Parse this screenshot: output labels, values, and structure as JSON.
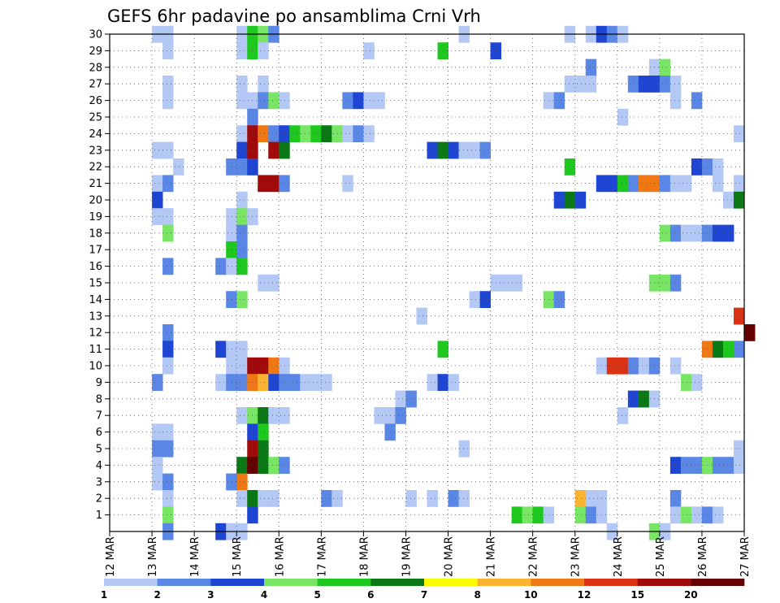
{
  "chart_data": {
    "type": "heatmap",
    "title": "GEFS 6hr padavine po ansamblima Crni Vrh",
    "xlabel": "",
    "ylabel": "",
    "x_ticks": [
      "12 MAR",
      "13 MAR",
      "14 MAR",
      "15 MAR",
      "16 MAR",
      "17 MAR",
      "18 MAR",
      "19 MAR",
      "20 MAR",
      "21 MAR",
      "22 MAR",
      "23 MAR",
      "24 MAR",
      "25 MAR",
      "26 MAR",
      "27 MAR"
    ],
    "xlim": [
      0,
      15
    ],
    "ylim": [
      0,
      30
    ],
    "y_ticks": [
      1,
      2,
      3,
      4,
      5,
      6,
      7,
      8,
      9,
      10,
      11,
      12,
      13,
      14,
      15,
      16,
      17,
      18,
      19,
      20,
      21,
      22,
      23,
      24,
      25,
      26,
      27,
      28,
      29,
      30
    ],
    "grid": true,
    "legend_position": "bottom",
    "legend": {
      "labels": [
        "1",
        "2",
        "3",
        "4",
        "5",
        "6",
        "7",
        "8",
        "10",
        "12",
        "15",
        "20"
      ],
      "colors": [
        "#b4c8f5",
        "#5a87e6",
        "#1e46d2",
        "#78e664",
        "#1ec81e",
        "#0a7814",
        "#fafa00",
        "#fab432",
        "#f07814",
        "#dc3214",
        "#a00a0a",
        "#640000"
      ]
    },
    "cell_unit_days": 0.25,
    "cells": [
      {
        "x": 1.0,
        "m": 30,
        "v": 1
      },
      {
        "x": 1.25,
        "m": 30,
        "v": 1
      },
      {
        "x": 3.0,
        "m": 30,
        "v": 1
      },
      {
        "x": 3.25,
        "m": 30,
        "v": 5
      },
      {
        "x": 3.5,
        "m": 30,
        "v": 4
      },
      {
        "x": 3.75,
        "m": 30,
        "v": 2
      },
      {
        "x": 8.25,
        "m": 30,
        "v": 1
      },
      {
        "x": 10.75,
        "m": 30,
        "v": 1
      },
      {
        "x": 11.25,
        "m": 30,
        "v": 1
      },
      {
        "x": 11.5,
        "m": 30,
        "v": 3
      },
      {
        "x": 11.75,
        "m": 30,
        "v": 2
      },
      {
        "x": 12.0,
        "m": 30,
        "v": 1
      },
      {
        "x": 1.25,
        "m": 29,
        "v": 1
      },
      {
        "x": 3.0,
        "m": 29,
        "v": 1
      },
      {
        "x": 3.25,
        "m": 29,
        "v": 5
      },
      {
        "x": 3.5,
        "m": 29,
        "v": 1
      },
      {
        "x": 6.0,
        "m": 29,
        "v": 1
      },
      {
        "x": 7.75,
        "m": 29,
        "v": 5
      },
      {
        "x": 9.0,
        "m": 29,
        "v": 3
      },
      {
        "x": 11.25,
        "m": 28,
        "v": 2
      },
      {
        "x": 12.75,
        "m": 28,
        "v": 1
      },
      {
        "x": 13.0,
        "m": 28,
        "v": 4
      },
      {
        "x": 1.25,
        "m": 27,
        "v": 1
      },
      {
        "x": 3.0,
        "m": 27,
        "v": 1
      },
      {
        "x": 3.5,
        "m": 27,
        "v": 1
      },
      {
        "x": 10.75,
        "m": 27,
        "v": 1
      },
      {
        "x": 11.0,
        "m": 27,
        "v": 1
      },
      {
        "x": 11.25,
        "m": 27,
        "v": 1
      },
      {
        "x": 12.25,
        "m": 27,
        "v": 2
      },
      {
        "x": 12.5,
        "m": 27,
        "v": 3
      },
      {
        "x": 12.75,
        "m": 27,
        "v": 3
      },
      {
        "x": 13.0,
        "m": 27,
        "v": 2
      },
      {
        "x": 13.25,
        "m": 27,
        "v": 1
      },
      {
        "x": 1.25,
        "m": 26,
        "v": 1
      },
      {
        "x": 3.0,
        "m": 26,
        "v": 1
      },
      {
        "x": 3.25,
        "m": 26,
        "v": 1
      },
      {
        "x": 3.5,
        "m": 26,
        "v": 2
      },
      {
        "x": 3.75,
        "m": 26,
        "v": 4
      },
      {
        "x": 4.0,
        "m": 26,
        "v": 1
      },
      {
        "x": 5.5,
        "m": 26,
        "v": 2
      },
      {
        "x": 5.75,
        "m": 26,
        "v": 3
      },
      {
        "x": 6.0,
        "m": 26,
        "v": 1
      },
      {
        "x": 6.25,
        "m": 26,
        "v": 1
      },
      {
        "x": 10.25,
        "m": 26,
        "v": 1
      },
      {
        "x": 10.5,
        "m": 26,
        "v": 2
      },
      {
        "x": 13.25,
        "m": 26,
        "v": 1
      },
      {
        "x": 13.75,
        "m": 26,
        "v": 2
      },
      {
        "x": 3.25,
        "m": 25,
        "v": 2
      },
      {
        "x": 12.0,
        "m": 25,
        "v": 1
      },
      {
        "x": 3.0,
        "m": 24,
        "v": 1
      },
      {
        "x": 3.25,
        "m": 24,
        "v": 15
      },
      {
        "x": 3.5,
        "m": 24,
        "v": 10
      },
      {
        "x": 3.75,
        "m": 24,
        "v": 2
      },
      {
        "x": 4.0,
        "m": 24,
        "v": 3
      },
      {
        "x": 4.25,
        "m": 24,
        "v": 5
      },
      {
        "x": 4.5,
        "m": 24,
        "v": 4
      },
      {
        "x": 4.75,
        "m": 24,
        "v": 5
      },
      {
        "x": 5.0,
        "m": 24,
        "v": 6
      },
      {
        "x": 5.25,
        "m": 24,
        "v": 4
      },
      {
        "x": 5.5,
        "m": 24,
        "v": 1
      },
      {
        "x": 5.75,
        "m": 24,
        "v": 2
      },
      {
        "x": 6.0,
        "m": 24,
        "v": 1
      },
      {
        "x": 14.75,
        "m": 24,
        "v": 1
      },
      {
        "x": 1.0,
        "m": 23,
        "v": 1
      },
      {
        "x": 1.25,
        "m": 23,
        "v": 1
      },
      {
        "x": 3.0,
        "m": 23,
        "v": 3
      },
      {
        "x": 3.25,
        "m": 23,
        "v": 15
      },
      {
        "x": 3.75,
        "m": 23,
        "v": 15
      },
      {
        "x": 4.0,
        "m": 23,
        "v": 6
      },
      {
        "x": 7.5,
        "m": 23,
        "v": 3
      },
      {
        "x": 7.75,
        "m": 23,
        "v": 6
      },
      {
        "x": 8.0,
        "m": 23,
        "v": 3
      },
      {
        "x": 8.25,
        "m": 23,
        "v": 1
      },
      {
        "x": 8.5,
        "m": 23,
        "v": 1
      },
      {
        "x": 8.75,
        "m": 23,
        "v": 2
      },
      {
        "x": 1.5,
        "m": 22,
        "v": 1
      },
      {
        "x": 2.75,
        "m": 22,
        "v": 2
      },
      {
        "x": 3.0,
        "m": 22,
        "v": 2
      },
      {
        "x": 3.25,
        "m": 22,
        "v": 3
      },
      {
        "x": 10.75,
        "m": 22,
        "v": 5
      },
      {
        "x": 13.75,
        "m": 22,
        "v": 3
      },
      {
        "x": 14.0,
        "m": 22,
        "v": 2
      },
      {
        "x": 14.25,
        "m": 22,
        "v": 1
      },
      {
        "x": 1.0,
        "m": 21,
        "v": 1
      },
      {
        "x": 1.25,
        "m": 21,
        "v": 2
      },
      {
        "x": 3.5,
        "m": 21,
        "v": 15
      },
      {
        "x": 3.75,
        "m": 21,
        "v": 15
      },
      {
        "x": 4.0,
        "m": 21,
        "v": 2
      },
      {
        "x": 5.5,
        "m": 21,
        "v": 1
      },
      {
        "x": 11.5,
        "m": 21,
        "v": 3
      },
      {
        "x": 11.75,
        "m": 21,
        "v": 3
      },
      {
        "x": 12.0,
        "m": 21,
        "v": 5
      },
      {
        "x": 12.25,
        "m": 21,
        "v": 2
      },
      {
        "x": 12.5,
        "m": 21,
        "v": 10
      },
      {
        "x": 12.75,
        "m": 21,
        "v": 10
      },
      {
        "x": 13.0,
        "m": 21,
        "v": 2
      },
      {
        "x": 13.25,
        "m": 21,
        "v": 1
      },
      {
        "x": 13.5,
        "m": 21,
        "v": 1
      },
      {
        "x": 14.25,
        "m": 21,
        "v": 1
      },
      {
        "x": 14.75,
        "m": 21,
        "v": 1
      },
      {
        "x": 1.0,
        "m": 20,
        "v": 3
      },
      {
        "x": 3.0,
        "m": 20,
        "v": 1
      },
      {
        "x": 10.5,
        "m": 20,
        "v": 3
      },
      {
        "x": 10.75,
        "m": 20,
        "v": 6
      },
      {
        "x": 11.0,
        "m": 20,
        "v": 3
      },
      {
        "x": 14.5,
        "m": 20,
        "v": 1
      },
      {
        "x": 14.75,
        "m": 20,
        "v": 6
      },
      {
        "x": 1.0,
        "m": 19,
        "v": 1
      },
      {
        "x": 1.25,
        "m": 19,
        "v": 1
      },
      {
        "x": 2.75,
        "m": 19,
        "v": 1
      },
      {
        "x": 3.0,
        "m": 19,
        "v": 4
      },
      {
        "x": 3.25,
        "m": 19,
        "v": 1
      },
      {
        "x": 1.25,
        "m": 18,
        "v": 4
      },
      {
        "x": 2.75,
        "m": 18,
        "v": 1
      },
      {
        "x": 3.0,
        "m": 18,
        "v": 2
      },
      {
        "x": 13.0,
        "m": 18,
        "v": 4
      },
      {
        "x": 13.25,
        "m": 18,
        "v": 2
      },
      {
        "x": 13.5,
        "m": 18,
        "v": 1
      },
      {
        "x": 13.75,
        "m": 18,
        "v": 1
      },
      {
        "x": 14.0,
        "m": 18,
        "v": 2
      },
      {
        "x": 14.25,
        "m": 18,
        "v": 3
      },
      {
        "x": 14.5,
        "m": 18,
        "v": 3
      },
      {
        "x": 2.75,
        "m": 17,
        "v": 5
      },
      {
        "x": 3.0,
        "m": 17,
        "v": 2
      },
      {
        "x": 1.25,
        "m": 16,
        "v": 2
      },
      {
        "x": 2.5,
        "m": 16,
        "v": 2
      },
      {
        "x": 2.75,
        "m": 16,
        "v": 1
      },
      {
        "x": 3.0,
        "m": 16,
        "v": 5
      },
      {
        "x": 3.5,
        "m": 15,
        "v": 1
      },
      {
        "x": 3.75,
        "m": 15,
        "v": 1
      },
      {
        "x": 9.0,
        "m": 15,
        "v": 1
      },
      {
        "x": 9.25,
        "m": 15,
        "v": 1
      },
      {
        "x": 9.5,
        "m": 15,
        "v": 1
      },
      {
        "x": 12.75,
        "m": 15,
        "v": 4
      },
      {
        "x": 13.0,
        "m": 15,
        "v": 4
      },
      {
        "x": 13.25,
        "m": 15,
        "v": 2
      },
      {
        "x": 2.75,
        "m": 14,
        "v": 2
      },
      {
        "x": 3.0,
        "m": 14,
        "v": 4
      },
      {
        "x": 8.5,
        "m": 14,
        "v": 1
      },
      {
        "x": 8.75,
        "m": 14,
        "v": 3
      },
      {
        "x": 10.25,
        "m": 14,
        "v": 4
      },
      {
        "x": 10.5,
        "m": 14,
        "v": 2
      },
      {
        "x": 7.25,
        "m": 13,
        "v": 1
      },
      {
        "x": 14.75,
        "m": 13,
        "v": 12
      },
      {
        "x": 1.25,
        "m": 12,
        "v": 2
      },
      {
        "x": 15.0,
        "m": 12,
        "v": 20
      },
      {
        "x": 1.25,
        "m": 11,
        "v": 3
      },
      {
        "x": 2.5,
        "m": 11,
        "v": 3
      },
      {
        "x": 2.75,
        "m": 11,
        "v": 1
      },
      {
        "x": 3.0,
        "m": 11,
        "v": 1
      },
      {
        "x": 7.75,
        "m": 11,
        "v": 5
      },
      {
        "x": 14.0,
        "m": 11,
        "v": 10
      },
      {
        "x": 14.25,
        "m": 11,
        "v": 6
      },
      {
        "x": 14.5,
        "m": 11,
        "v": 5
      },
      {
        "x": 14.75,
        "m": 11,
        "v": 2
      },
      {
        "x": 1.25,
        "m": 10,
        "v": 1
      },
      {
        "x": 2.75,
        "m": 10,
        "v": 1
      },
      {
        "x": 3.0,
        "m": 10,
        "v": 1
      },
      {
        "x": 3.25,
        "m": 10,
        "v": 15
      },
      {
        "x": 3.5,
        "m": 10,
        "v": 15
      },
      {
        "x": 3.75,
        "m": 10,
        "v": 10
      },
      {
        "x": 4.0,
        "m": 10,
        "v": 1
      },
      {
        "x": 11.5,
        "m": 10,
        "v": 1
      },
      {
        "x": 11.75,
        "m": 10,
        "v": 12
      },
      {
        "x": 12.0,
        "m": 10,
        "v": 12
      },
      {
        "x": 12.25,
        "m": 10,
        "v": 2
      },
      {
        "x": 12.5,
        "m": 10,
        "v": 1
      },
      {
        "x": 12.75,
        "m": 10,
        "v": 2
      },
      {
        "x": 13.25,
        "m": 10,
        "v": 1
      },
      {
        "x": 1.0,
        "m": 9,
        "v": 2
      },
      {
        "x": 2.5,
        "m": 9,
        "v": 1
      },
      {
        "x": 2.75,
        "m": 9,
        "v": 2
      },
      {
        "x": 3.0,
        "m": 9,
        "v": 2
      },
      {
        "x": 3.25,
        "m": 9,
        "v": 10
      },
      {
        "x": 3.5,
        "m": 9,
        "v": 8
      },
      {
        "x": 3.75,
        "m": 9,
        "v": 3
      },
      {
        "x": 4.0,
        "m": 9,
        "v": 2
      },
      {
        "x": 4.25,
        "m": 9,
        "v": 2
      },
      {
        "x": 4.5,
        "m": 9,
        "v": 1
      },
      {
        "x": 4.75,
        "m": 9,
        "v": 1
      },
      {
        "x": 5.0,
        "m": 9,
        "v": 1
      },
      {
        "x": 7.5,
        "m": 9,
        "v": 1
      },
      {
        "x": 7.75,
        "m": 9,
        "v": 3
      },
      {
        "x": 8.0,
        "m": 9,
        "v": 1
      },
      {
        "x": 13.5,
        "m": 9,
        "v": 4
      },
      {
        "x": 13.75,
        "m": 9,
        "v": 1
      },
      {
        "x": 6.75,
        "m": 8,
        "v": 1
      },
      {
        "x": 7.0,
        "m": 8,
        "v": 2
      },
      {
        "x": 12.25,
        "m": 8,
        "v": 3
      },
      {
        "x": 12.5,
        "m": 8,
        "v": 6
      },
      {
        "x": 12.75,
        "m": 8,
        "v": 1
      },
      {
        "x": 3.0,
        "m": 7,
        "v": 1
      },
      {
        "x": 3.25,
        "m": 7,
        "v": 4
      },
      {
        "x": 3.5,
        "m": 7,
        "v": 6
      },
      {
        "x": 3.75,
        "m": 7,
        "v": 1
      },
      {
        "x": 4.0,
        "m": 7,
        "v": 1
      },
      {
        "x": 6.25,
        "m": 7,
        "v": 1
      },
      {
        "x": 6.5,
        "m": 7,
        "v": 1
      },
      {
        "x": 6.75,
        "m": 7,
        "v": 2
      },
      {
        "x": 12.0,
        "m": 7,
        "v": 1
      },
      {
        "x": 1.0,
        "m": 6,
        "v": 1
      },
      {
        "x": 1.25,
        "m": 6,
        "v": 1
      },
      {
        "x": 3.25,
        "m": 6,
        "v": 3
      },
      {
        "x": 3.5,
        "m": 6,
        "v": 5
      },
      {
        "x": 6.5,
        "m": 6,
        "v": 2
      },
      {
        "x": 1.0,
        "m": 5,
        "v": 2
      },
      {
        "x": 1.25,
        "m": 5,
        "v": 2
      },
      {
        "x": 3.25,
        "m": 5,
        "v": 15
      },
      {
        "x": 3.5,
        "m": 5,
        "v": 6
      },
      {
        "x": 8.25,
        "m": 5,
        "v": 1
      },
      {
        "x": 14.75,
        "m": 5,
        "v": 1
      },
      {
        "x": 1.0,
        "m": 4,
        "v": 1
      },
      {
        "x": 3.0,
        "m": 4,
        "v": 6
      },
      {
        "x": 3.25,
        "m": 4,
        "v": 20
      },
      {
        "x": 3.5,
        "m": 4,
        "v": 6
      },
      {
        "x": 3.75,
        "m": 4,
        "v": 4
      },
      {
        "x": 4.0,
        "m": 4,
        "v": 2
      },
      {
        "x": 13.25,
        "m": 4,
        "v": 3
      },
      {
        "x": 13.5,
        "m": 4,
        "v": 2
      },
      {
        "x": 13.75,
        "m": 4,
        "v": 2
      },
      {
        "x": 14.0,
        "m": 4,
        "v": 4
      },
      {
        "x": 14.25,
        "m": 4,
        "v": 2
      },
      {
        "x": 14.5,
        "m": 4,
        "v": 2
      },
      {
        "x": 14.75,
        "m": 4,
        "v": 1
      },
      {
        "x": 1.0,
        "m": 3,
        "v": 1
      },
      {
        "x": 1.25,
        "m": 3,
        "v": 2
      },
      {
        "x": 2.75,
        "m": 3,
        "v": 2
      },
      {
        "x": 3.0,
        "m": 3,
        "v": 10
      },
      {
        "x": 1.25,
        "m": 2,
        "v": 1
      },
      {
        "x": 3.0,
        "m": 2,
        "v": 1
      },
      {
        "x": 3.25,
        "m": 2,
        "v": 6
      },
      {
        "x": 3.5,
        "m": 2,
        "v": 1
      },
      {
        "x": 3.75,
        "m": 2,
        "v": 1
      },
      {
        "x": 5.0,
        "m": 2,
        "v": 2
      },
      {
        "x": 5.25,
        "m": 2,
        "v": 1
      },
      {
        "x": 7.0,
        "m": 2,
        "v": 1
      },
      {
        "x": 7.5,
        "m": 2,
        "v": 1
      },
      {
        "x": 8.0,
        "m": 2,
        "v": 2
      },
      {
        "x": 8.25,
        "m": 2,
        "v": 1
      },
      {
        "x": 11.0,
        "m": 2,
        "v": 8
      },
      {
        "x": 11.25,
        "m": 2,
        "v": 1
      },
      {
        "x": 11.5,
        "m": 2,
        "v": 1
      },
      {
        "x": 13.25,
        "m": 2,
        "v": 2
      },
      {
        "x": 1.25,
        "m": 1,
        "v": 4
      },
      {
        "x": 3.25,
        "m": 1,
        "v": 3
      },
      {
        "x": 9.5,
        "m": 1,
        "v": 5
      },
      {
        "x": 9.75,
        "m": 1,
        "v": 4
      },
      {
        "x": 10.0,
        "m": 1,
        "v": 5
      },
      {
        "x": 10.25,
        "m": 1,
        "v": 1
      },
      {
        "x": 11.0,
        "m": 1,
        "v": 4
      },
      {
        "x": 11.25,
        "m": 1,
        "v": 2
      },
      {
        "x": 11.5,
        "m": 1,
        "v": 1
      },
      {
        "x": 13.25,
        "m": 1,
        "v": 1
      },
      {
        "x": 13.5,
        "m": 1,
        "v": 4
      },
      {
        "x": 13.75,
        "m": 1,
        "v": 1
      },
      {
        "x": 14.0,
        "m": 1,
        "v": 2
      },
      {
        "x": 14.25,
        "m": 1,
        "v": 1
      },
      {
        "x": 1.25,
        "m": 0,
        "v": 2
      },
      {
        "x": 2.5,
        "m": 0,
        "v": 3
      },
      {
        "x": 2.75,
        "m": 0,
        "v": 1
      },
      {
        "x": 3.0,
        "m": 0,
        "v": 1
      },
      {
        "x": 11.75,
        "m": 0,
        "v": 1
      },
      {
        "x": 12.75,
        "m": 0,
        "v": 4
      },
      {
        "x": 13.0,
        "m": 0,
        "v": 1
      }
    ]
  }
}
